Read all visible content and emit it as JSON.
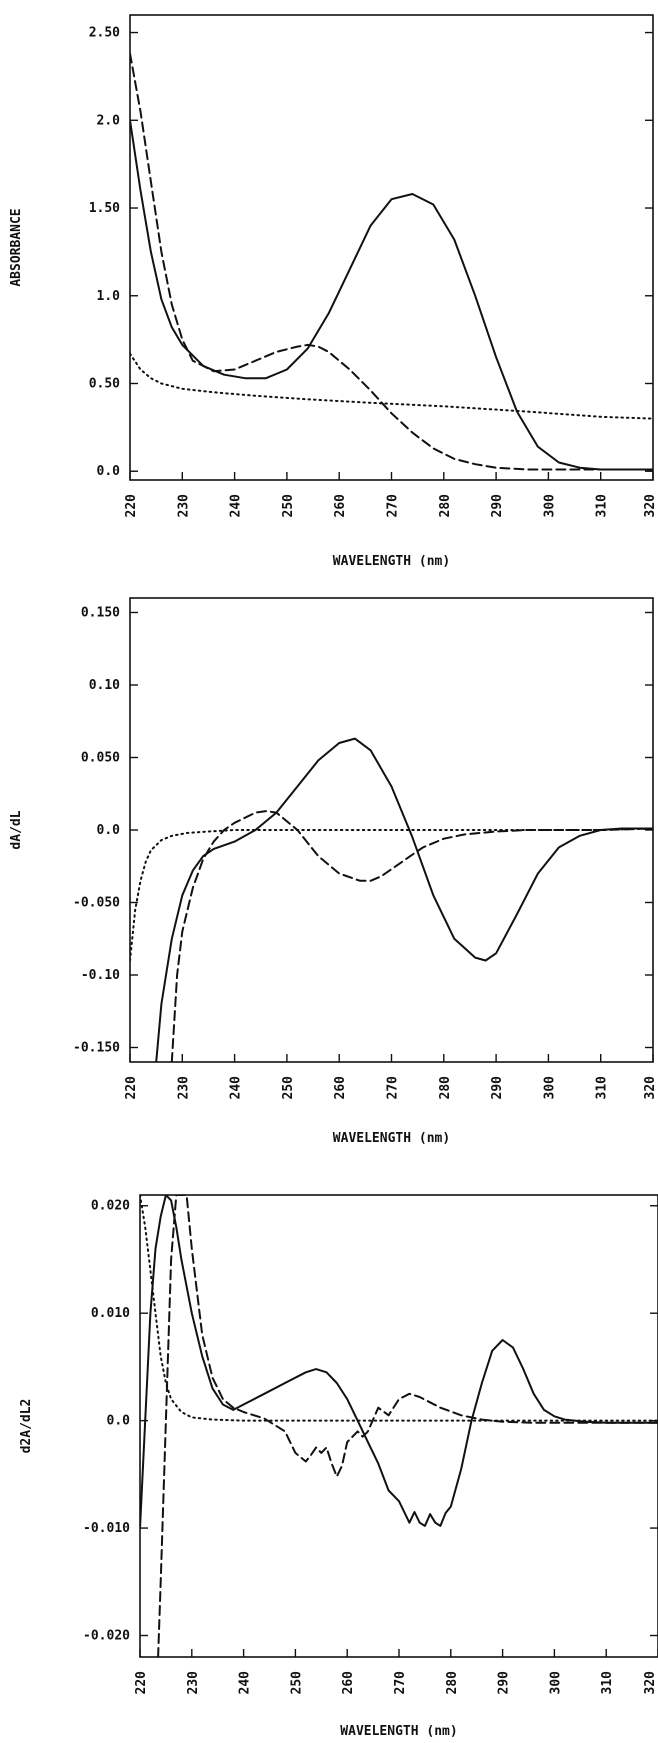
{
  "chart_data": [
    {
      "type": "line",
      "title": "",
      "xlabel": "WAVELENGTH (nm)",
      "ylabel": "ABSORBANCE",
      "xlim": [
        220,
        320
      ],
      "ylim": [
        -0.05,
        2.6
      ],
      "xticks": [
        220,
        230,
        240,
        250,
        260,
        270,
        280,
        290,
        300,
        310,
        320
      ],
      "xtick_labels": [
        "220",
        "230",
        "240",
        "250",
        "260",
        "270",
        "280",
        "290",
        "300",
        "310",
        "320"
      ],
      "yticks": [
        0.0,
        0.5,
        1.0,
        1.5,
        2.0,
        2.5
      ],
      "ytick_labels": [
        "0.0",
        "0.50",
        "1.0",
        "1.50",
        "2.0",
        "2.50"
      ],
      "grid": false,
      "series": [
        {
          "style": "solid",
          "x": [
            220,
            222,
            224,
            226,
            228,
            230,
            234,
            238,
            242,
            246,
            250,
            254,
            258,
            262,
            266,
            270,
            274,
            278,
            282,
            286,
            290,
            294,
            298,
            302,
            306,
            310,
            314,
            320
          ],
          "y": [
            2.0,
            1.6,
            1.25,
            0.98,
            0.82,
            0.72,
            0.6,
            0.55,
            0.53,
            0.53,
            0.58,
            0.7,
            0.9,
            1.15,
            1.4,
            1.55,
            1.58,
            1.52,
            1.32,
            1.0,
            0.65,
            0.34,
            0.14,
            0.05,
            0.02,
            0.01,
            0.01,
            0.01
          ]
        },
        {
          "style": "dashed",
          "x": [
            220,
            222,
            224,
            226,
            228,
            230,
            232,
            236,
            240,
            244,
            248,
            252,
            254,
            256,
            258,
            262,
            266,
            270,
            274,
            278,
            282,
            286,
            290,
            296,
            302,
            310,
            320
          ],
          "y": [
            2.38,
            2.05,
            1.65,
            1.25,
            0.95,
            0.75,
            0.63,
            0.57,
            0.58,
            0.63,
            0.68,
            0.71,
            0.72,
            0.71,
            0.68,
            0.58,
            0.46,
            0.33,
            0.22,
            0.13,
            0.07,
            0.04,
            0.02,
            0.01,
            0.01,
            0.01,
            0.01
          ]
        },
        {
          "style": "dotted",
          "x": [
            220,
            222,
            224,
            226,
            230,
            236,
            244,
            254,
            266,
            280,
            296,
            310,
            320
          ],
          "y": [
            0.67,
            0.58,
            0.53,
            0.5,
            0.47,
            0.45,
            0.43,
            0.41,
            0.39,
            0.37,
            0.34,
            0.31,
            0.3
          ]
        }
      ]
    },
    {
      "type": "line",
      "title": "",
      "xlabel": "WAVELENGTH (nm)",
      "ylabel": "dA/dL",
      "xlim": [
        220,
        320
      ],
      "ylim": [
        -0.16,
        0.16
      ],
      "xticks": [
        220,
        230,
        240,
        250,
        260,
        270,
        280,
        290,
        300,
        310,
        320
      ],
      "xtick_labels": [
        "220",
        "230",
        "240",
        "250",
        "260",
        "270",
        "280",
        "290",
        "300",
        "310",
        "320"
      ],
      "yticks": [
        -0.15,
        -0.1,
        -0.05,
        0.0,
        0.05,
        0.1,
        0.15
      ],
      "ytick_labels": [
        "-0.150",
        "-0.10",
        "-0.050",
        "0.0",
        "0.050",
        "0.10",
        "0.150"
      ],
      "grid": false,
      "series": [
        {
          "style": "solid",
          "x": [
            225,
            226,
            228,
            230,
            232,
            234,
            236,
            240,
            244,
            248,
            252,
            256,
            260,
            263,
            266,
            270,
            274,
            278,
            282,
            286,
            288,
            290,
            294,
            298,
            302,
            306,
            310,
            314,
            320
          ],
          "y": [
            -0.16,
            -0.12,
            -0.075,
            -0.045,
            -0.028,
            -0.018,
            -0.013,
            -0.008,
            0.0,
            0.012,
            0.03,
            0.048,
            0.06,
            0.063,
            0.055,
            0.03,
            -0.005,
            -0.045,
            -0.075,
            -0.088,
            -0.09,
            -0.085,
            -0.058,
            -0.03,
            -0.012,
            -0.004,
            0.0,
            0.001,
            0.001
          ]
        },
        {
          "style": "dashed",
          "x": [
            228,
            229,
            230,
            232,
            234,
            236,
            238,
            240,
            244,
            246,
            248,
            252,
            256,
            260,
            264,
            266,
            268,
            272,
            276,
            280,
            284,
            290,
            296,
            302,
            310,
            320
          ],
          "y": [
            -0.16,
            -0.1,
            -0.07,
            -0.04,
            -0.02,
            -0.008,
            0.0,
            0.005,
            0.012,
            0.013,
            0.012,
            0.0,
            -0.018,
            -0.03,
            -0.035,
            -0.035,
            -0.032,
            -0.022,
            -0.012,
            -0.006,
            -0.003,
            -0.001,
            0.0,
            0.0,
            0.0,
            0.001
          ]
        },
        {
          "style": "dotted",
          "x": [
            220,
            221,
            222,
            223,
            224,
            226,
            228,
            231,
            235,
            240,
            250,
            260,
            270,
            280,
            290,
            300,
            310,
            320
          ],
          "y": [
            -0.09,
            -0.055,
            -0.035,
            -0.022,
            -0.014,
            -0.007,
            -0.004,
            -0.002,
            -0.001,
            0.0,
            0.0,
            0.0,
            0.0,
            0.0,
            0.0,
            0.0,
            0.0,
            0.001
          ]
        }
      ]
    },
    {
      "type": "line",
      "title": "",
      "xlabel": "WAVELENGTH (nm)",
      "ylabel": "d2A/dL2",
      "xlim": [
        220,
        320
      ],
      "ylim": [
        -0.022,
        0.021
      ],
      "xticks": [
        220,
        230,
        240,
        250,
        260,
        270,
        280,
        290,
        300,
        310,
        320
      ],
      "xtick_labels": [
        "220",
        "230",
        "240",
        "250",
        "260",
        "270",
        "280",
        "290",
        "300",
        "310",
        "320"
      ],
      "yticks": [
        -0.02,
        -0.01,
        0.0,
        0.01,
        0.02
      ],
      "ytick_labels": [
        "-0.020",
        "-0.010",
        "0.0",
        "0.010",
        "0.020"
      ],
      "grid": false,
      "series": [
        {
          "style": "solid",
          "x": [
            220,
            221,
            222,
            223,
            224,
            225,
            226,
            227,
            228,
            230,
            232,
            234,
            236,
            238,
            240,
            244,
            248,
            252,
            254,
            256,
            258,
            260,
            262,
            264,
            266,
            268,
            270,
            272,
            273,
            274,
            275,
            276,
            277,
            278,
            279,
            280,
            282,
            284,
            286,
            288,
            290,
            292,
            294,
            296,
            298,
            300,
            302,
            306,
            310,
            320
          ],
          "y": [
            -0.01,
            0.0,
            0.01,
            0.016,
            0.019,
            0.021,
            0.0205,
            0.018,
            0.015,
            0.01,
            0.006,
            0.003,
            0.0015,
            0.001,
            0.0015,
            0.0025,
            0.0035,
            0.0045,
            0.0048,
            0.0045,
            0.0035,
            0.002,
            0.0,
            -0.002,
            -0.004,
            -0.0065,
            -0.0075,
            -0.0095,
            -0.0085,
            -0.0095,
            -0.0098,
            -0.0087,
            -0.0095,
            -0.0098,
            -0.0086,
            -0.008,
            -0.0045,
            0.0,
            0.0035,
            0.0065,
            0.0075,
            0.0068,
            0.0048,
            0.0025,
            0.001,
            0.0004,
            0.0001,
            -0.0001,
            -0.0002,
            -0.0002
          ]
        },
        {
          "style": "dashed",
          "x": [
            223.5,
            224,
            225,
            226,
            227,
            228,
            229,
            230,
            232,
            234,
            236,
            238,
            240,
            244,
            248,
            250,
            252,
            253,
            254,
            255,
            256,
            257,
            258,
            259,
            260,
            262,
            263,
            264,
            266,
            268,
            270,
            272,
            274,
            278,
            282,
            286,
            290,
            296,
            302,
            310,
            320
          ],
          "y": [
            -0.022,
            -0.015,
            0.0,
            0.015,
            0.021,
            0.021,
            0.021,
            0.016,
            0.008,
            0.004,
            0.002,
            0.0012,
            0.0008,
            0.0002,
            -0.001,
            -0.003,
            -0.0038,
            -0.0032,
            -0.0025,
            -0.003,
            -0.0025,
            -0.004,
            -0.0052,
            -0.0042,
            -0.002,
            -0.001,
            -0.0015,
            -0.001,
            0.0012,
            0.0005,
            0.002,
            0.0025,
            0.0022,
            0.0012,
            0.0005,
            0.0001,
            -0.0001,
            -0.0002,
            -0.0002,
            -0.0002,
            -0.0002
          ]
        },
        {
          "style": "dotted",
          "x": [
            220,
            221,
            222,
            223,
            224,
            225,
            226,
            228,
            230,
            234,
            240,
            250,
            260,
            270,
            280,
            290,
            300,
            310,
            320
          ],
          "y": [
            0.021,
            0.018,
            0.014,
            0.01,
            0.006,
            0.0035,
            0.002,
            0.0008,
            0.0003,
            0.0001,
            0.0,
            0.0,
            0.0,
            0.0,
            0.0,
            0.0,
            0.0,
            0.0,
            0.0
          ]
        }
      ]
    }
  ]
}
